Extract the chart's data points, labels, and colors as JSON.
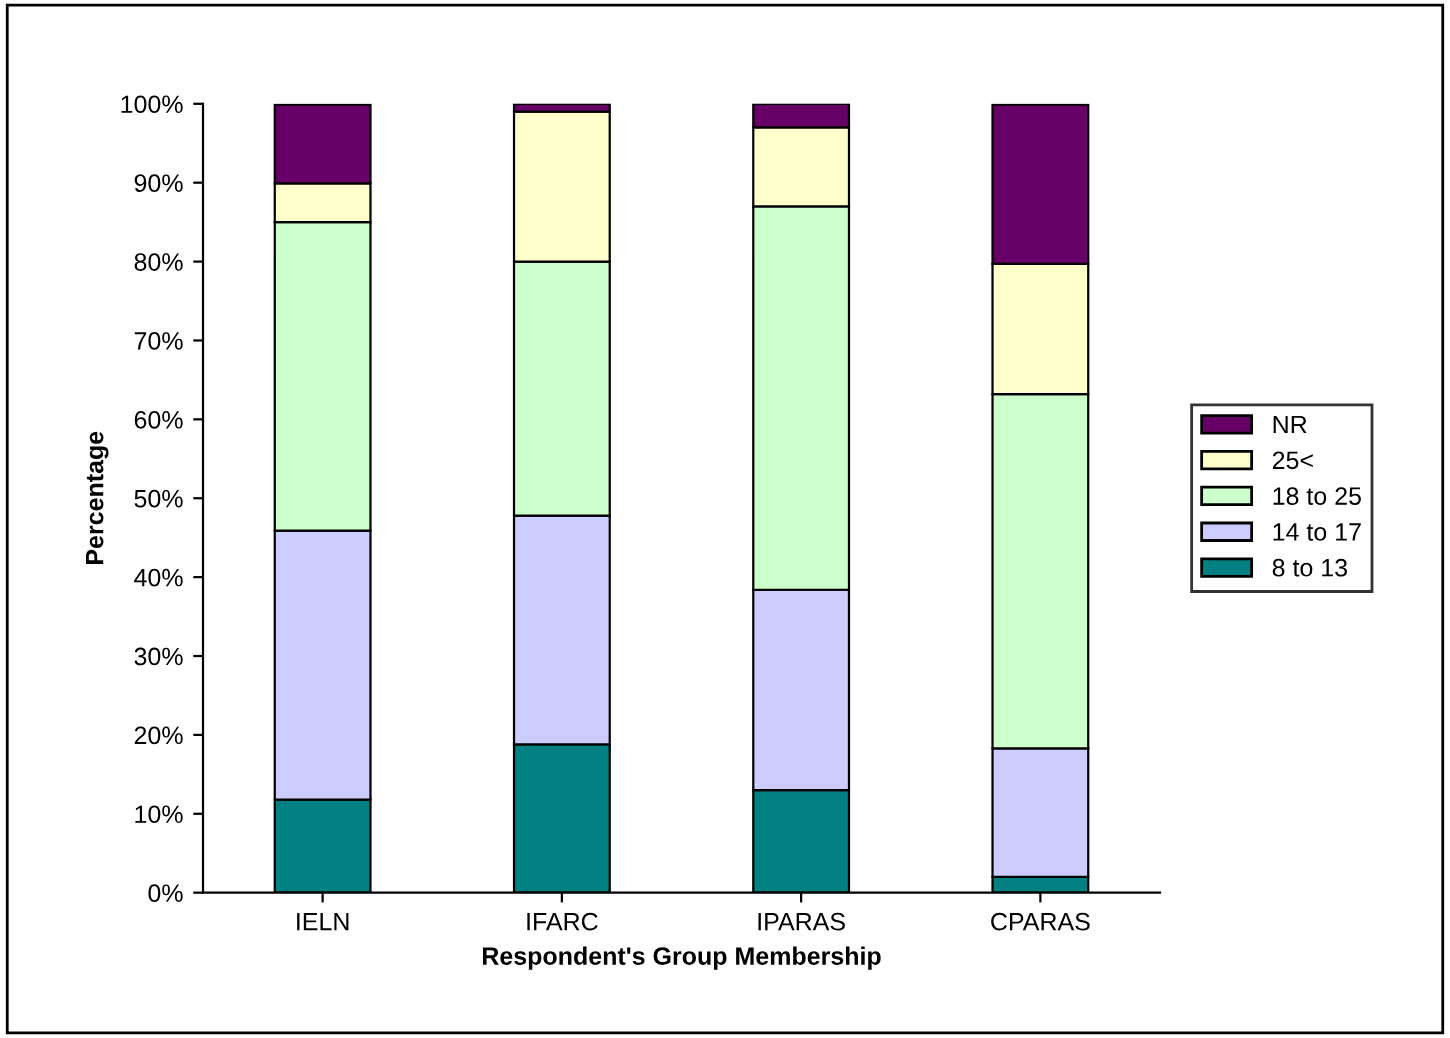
{
  "chart_data": {
    "type": "bar",
    "stacked": true,
    "xlabel": "Respondent's Group Membership",
    "ylabel": "Percentage",
    "categories": [
      "IELN",
      "IFARC",
      "IPARAS",
      "CPARAS"
    ],
    "series": [
      {
        "name": "8 to 13",
        "color": "#008080",
        "values": [
          11.8,
          18.8,
          13.0,
          2.0
        ]
      },
      {
        "name": "14 to 17",
        "color": "#ccccff",
        "values": [
          34.1,
          29.0,
          25.4,
          16.3
        ]
      },
      {
        "name": "18 to 25",
        "color": "#ccffcc",
        "values": [
          39.1,
          32.2,
          48.6,
          44.9
        ]
      },
      {
        "name": "25<",
        "color": "#ffffcc",
        "values": [
          4.9,
          19.0,
          10.0,
          16.5
        ]
      },
      {
        "name": "NR",
        "color": "#660066",
        "values": [
          10.0,
          1.0,
          3.0,
          20.2
        ]
      }
    ],
    "ylim": [
      0,
      100
    ],
    "yticks": [
      {
        "value": 0,
        "label": "0%"
      },
      {
        "value": 10,
        "label": "10%"
      },
      {
        "value": 20,
        "label": "20%"
      },
      {
        "value": 30,
        "label": "30%"
      },
      {
        "value": 40,
        "label": "40%"
      },
      {
        "value": 50,
        "label": "50%"
      },
      {
        "value": 60,
        "label": "60%"
      },
      {
        "value": 70,
        "label": "70%"
      },
      {
        "value": 80,
        "label": "80%"
      },
      {
        "value": 90,
        "label": "90%"
      },
      {
        "value": 100,
        "label": "100%"
      }
    ],
    "grid": false,
    "legend": "right"
  }
}
